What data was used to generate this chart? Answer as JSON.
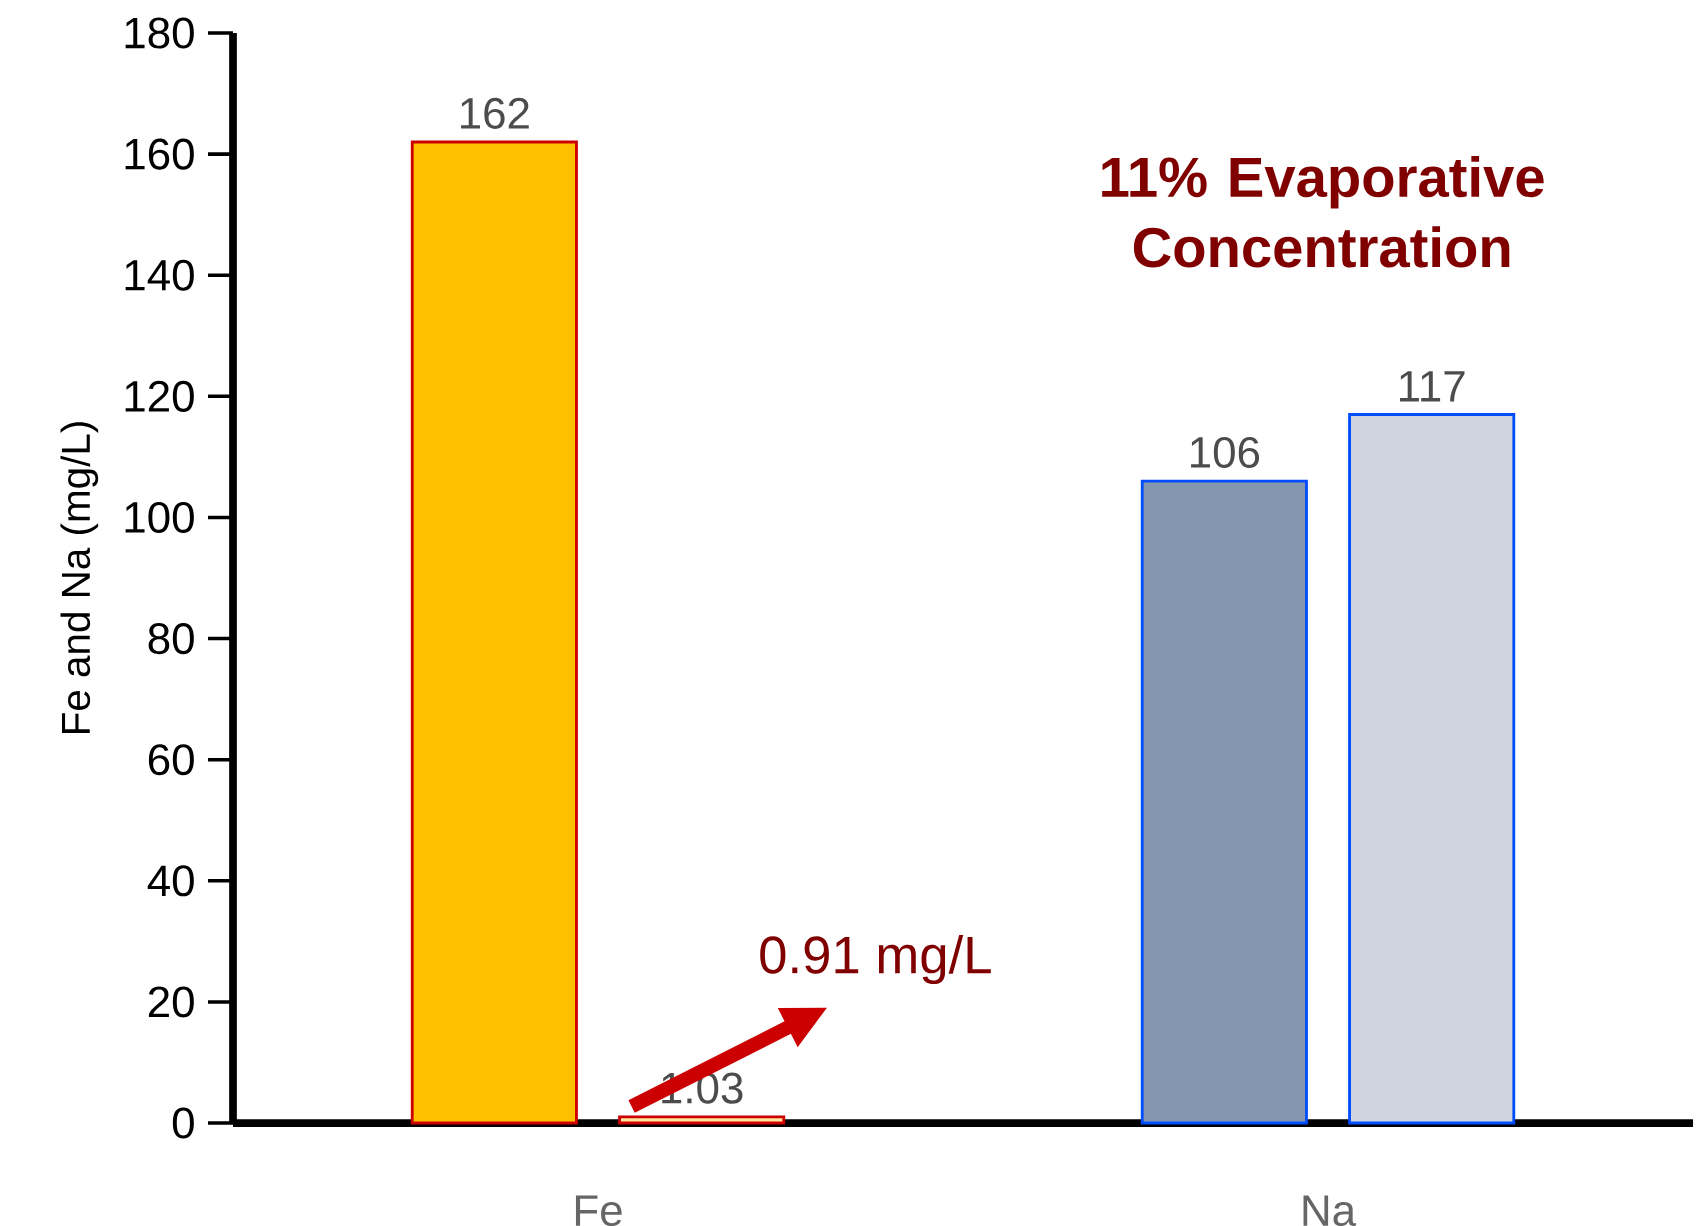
{
  "chart_data": {
    "type": "bar",
    "categories": [
      "Fe",
      "Na"
    ],
    "series": [
      {
        "colors": [
          "#ffc000",
          "#8497b0"
        ],
        "values": [
          162,
          106
        ]
      },
      {
        "colors": [
          "#ffe699",
          "#ced5df"
        ],
        "values": [
          1.03,
          117
        ]
      }
    ],
    "ylabel": "Fe and Na (mg/L)",
    "ylim": [
      0,
      180
    ],
    "yticks": [
      0,
      20,
      40,
      60,
      80,
      100,
      120,
      140,
      160,
      180
    ],
    "data_labels": true,
    "annotations": [
      "11% Evaporative Concentration",
      "0.91 mg/L"
    ]
  }
}
